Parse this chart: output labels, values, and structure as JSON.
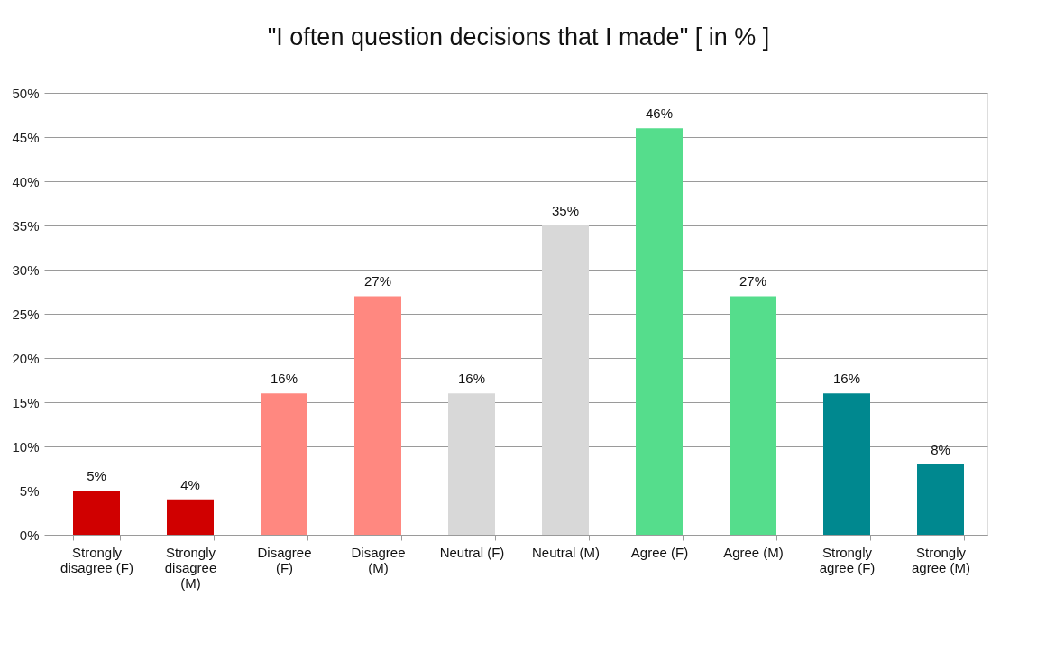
{
  "chart_data": {
    "type": "bar",
    "title": "\"I often question decisions that I made\" [ in % ]",
    "categories": [
      "Strongly disagree (F)",
      "Strongly disagree (M)",
      "Disagree (F)",
      "Disagree (M)",
      "Neutral (F)",
      "Neutral (M)",
      "Agree (F)",
      "Agree (M)",
      "Strongly agree (F)",
      "Strongly agree (M)"
    ],
    "values": [
      5,
      4,
      16,
      27,
      16,
      35,
      46,
      27,
      16,
      8
    ],
    "value_labels": [
      "5%",
      "4%",
      "16%",
      "27%",
      "16%",
      "35%",
      "46%",
      "27%",
      "16%",
      "8%"
    ],
    "colors": [
      "#d00000",
      "#d00000",
      "#ff8880",
      "#ff8880",
      "#d8d8d8",
      "#d8d8d8",
      "#55dd8c",
      "#55dd8c",
      "#00888f",
      "#00888f"
    ],
    "ylim": [
      0,
      50
    ],
    "yticks": [
      {
        "value": 0,
        "label": "0%"
      },
      {
        "value": 5,
        "label": "5%"
      },
      {
        "value": 10,
        "label": "10%"
      },
      {
        "value": 15,
        "label": "15%"
      },
      {
        "value": 20,
        "label": "20%"
      },
      {
        "value": 25,
        "label": "25%"
      },
      {
        "value": 30,
        "label": "30%"
      },
      {
        "value": 35,
        "label": "35%"
      },
      {
        "value": 40,
        "label": "40%"
      },
      {
        "value": 45,
        "label": "45%"
      },
      {
        "value": 50,
        "label": "50%"
      }
    ],
    "grid": "y"
  }
}
